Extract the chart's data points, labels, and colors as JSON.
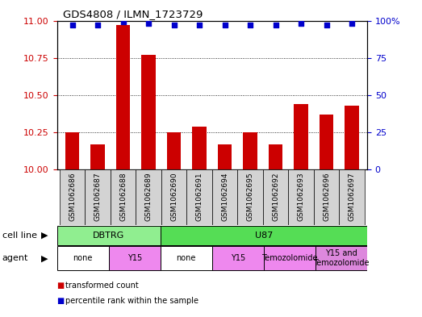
{
  "title": "GDS4808 / ILMN_1723729",
  "samples": [
    "GSM1062686",
    "GSM1062687",
    "GSM1062688",
    "GSM1062689",
    "GSM1062690",
    "GSM1062691",
    "GSM1062694",
    "GSM1062695",
    "GSM1062692",
    "GSM1062693",
    "GSM1062696",
    "GSM1062697"
  ],
  "transformed_count": [
    10.25,
    10.17,
    10.97,
    10.77,
    10.25,
    10.29,
    10.17,
    10.25,
    10.17,
    10.44,
    10.37,
    10.43
  ],
  "percentile_rank": [
    97,
    97,
    99,
    98,
    97,
    97,
    97,
    97,
    97,
    98,
    97,
    98
  ],
  "ylim_left": [
    10,
    11
  ],
  "ylim_right": [
    0,
    100
  ],
  "yticks_left": [
    10,
    10.25,
    10.5,
    10.75,
    11
  ],
  "yticks_right": [
    0,
    25,
    50,
    75,
    100
  ],
  "bar_color": "#cc0000",
  "dot_color": "#0000cc",
  "cell_line_groups": [
    {
      "name": "DBTRG",
      "start": 0,
      "end": 3,
      "color": "#90ee90"
    },
    {
      "name": "U87",
      "start": 4,
      "end": 11,
      "color": "#55dd55"
    }
  ],
  "agent_groups": [
    {
      "name": "none",
      "start": 0,
      "end": 1,
      "color": "#ffffff"
    },
    {
      "name": "Y15",
      "start": 2,
      "end": 3,
      "color": "#ee88ee"
    },
    {
      "name": "none",
      "start": 4,
      "end": 5,
      "color": "#ffffff"
    },
    {
      "name": "Y15",
      "start": 6,
      "end": 7,
      "color": "#ee88ee"
    },
    {
      "name": "Temozolomide",
      "start": 8,
      "end": 9,
      "color": "#ee88ee"
    },
    {
      "name": "Y15 and\nTemozolomide",
      "start": 10,
      "end": 11,
      "color": "#dd88dd"
    }
  ],
  "cell_line_label": "cell line",
  "agent_label": "agent",
  "legend_items": [
    {
      "label": "transformed count",
      "color": "#cc0000"
    },
    {
      "label": "percentile rank within the sample",
      "color": "#0000cc"
    }
  ],
  "bg_color": "#ffffff",
  "tick_color_left": "#cc0000",
  "tick_color_right": "#0000cc",
  "sample_bg_color": "#d3d3d3",
  "right_tick_labels": [
    "0",
    "25",
    "50",
    "75",
    "100%"
  ]
}
